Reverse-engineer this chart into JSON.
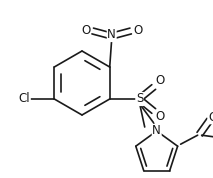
{
  "bg_color": "#ffffff",
  "line_color": "#1a1a1a",
  "lw": 1.2,
  "figsize": [
    2.13,
    1.78
  ],
  "dpi": 100,
  "xlim": [
    0,
    213
  ],
  "ylim": [
    0,
    178
  ]
}
